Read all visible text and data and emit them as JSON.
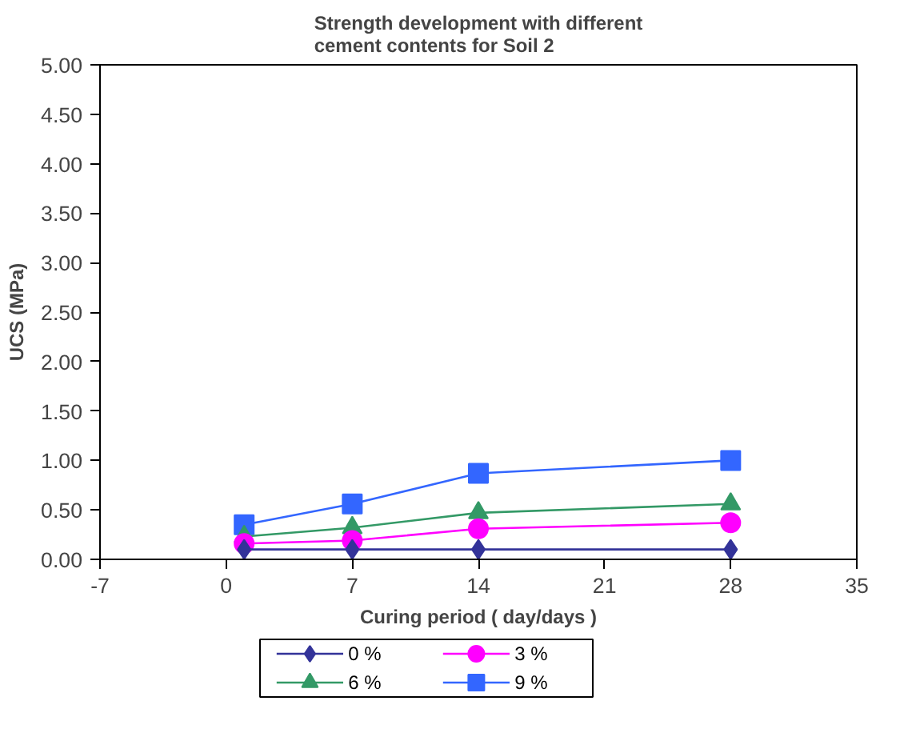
{
  "chart_data": {
    "type": "line",
    "title": "Strength development with different cement contents for Soil 2",
    "xlabel": "Curing period ( day/days )",
    "ylabel": "UCS (MPa)",
    "x": [
      1,
      7,
      14,
      28
    ],
    "series": [
      {
        "name": "0 %",
        "color": "#333399",
        "marker": "diamond",
        "values": [
          0.1,
          0.1,
          0.1,
          0.1
        ]
      },
      {
        "name": "3 %",
        "color": "#ff00ff",
        "marker": "circle",
        "values": [
          0.16,
          0.19,
          0.31,
          0.37
        ]
      },
      {
        "name": "6 %",
        "color": "#339966",
        "marker": "triangle",
        "values": [
          0.23,
          0.32,
          0.47,
          0.56
        ]
      },
      {
        "name": "9 %",
        "color": "#3366ff",
        "marker": "square",
        "values": [
          0.35,
          0.56,
          0.87,
          1.0
        ]
      }
    ],
    "xlim": [
      -7,
      35
    ],
    "xticks": [
      -7,
      0,
      7,
      14,
      21,
      28,
      35
    ],
    "ylim": [
      0,
      5
    ],
    "yticks": [
      {
        "value": 0,
        "label": "0.00"
      },
      {
        "value": 0.5,
        "label": "0.50"
      },
      {
        "value": 1,
        "label": "1.00"
      },
      {
        "value": 1.5,
        "label": "1.50"
      },
      {
        "value": 2,
        "label": "2.00"
      },
      {
        "value": 2.5,
        "label": "2.50"
      },
      {
        "value": 3,
        "label": "3.00"
      },
      {
        "value": 3.5,
        "label": "3.50"
      },
      {
        "value": 4,
        "label": "4.00"
      },
      {
        "value": 4.5,
        "label": "4.50"
      },
      {
        "value": 5,
        "label": "5.00"
      }
    ],
    "grid": false,
    "legend": "bottom",
    "line_style": "solid"
  }
}
